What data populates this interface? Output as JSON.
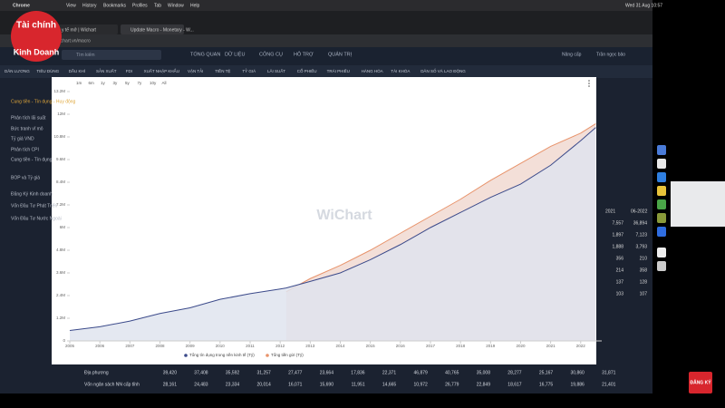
{
  "menubar": {
    "app": "Chrome",
    "items": [
      "View",
      "History",
      "Bookmarks",
      "Profiles",
      "Tab",
      "Window",
      "Help"
    ],
    "clock": "Wed 31 Aug 10:57"
  },
  "tabs": [
    "y tế mở | Wichart",
    "Update Macro - Monetary - W..."
  ],
  "address": "wichart.vn/macro",
  "logo": [
    "Tài chính",
    "Kinh Doanh"
  ],
  "search_placeholder": "Tìm kiếm",
  "nav": [
    "TỔNG QUAN",
    "DỮ LIỆU",
    "CÔNG CỤ",
    "HỖ TRỢ",
    "QUẢN TRỊ"
  ],
  "user": [
    "Nâng cấp",
    "Trần ngọc bảo"
  ],
  "subnav": [
    "DÂN LƯƠNG",
    "TIÊU DÙNG",
    "DẦU KHÍ",
    "SẢN XUẤT",
    "FDI",
    "XUẤT NHẬP KHẨU",
    "VẬN TẢI",
    "TIỀN TỆ",
    "TỶ GIÁ",
    "LÃI SUẤT",
    "CỔ PHIẾU",
    "TRÁI PHIẾU",
    "HÀNG HÓA",
    "TÀI KHÓA",
    "DÂN SỐ VÀ LAO ĐỘNG"
  ],
  "sidebar": [
    "Cung tiền - Tín dụng - Huy động",
    "Phân tích lãi suất",
    "Bức tranh vĩ mô",
    "Tỷ giá VND",
    "Phân tích CPI",
    "Cung tiền - Tín dụng",
    "BOP và Tỷ giá",
    "Đăng Ký Kinh doanh",
    "Vốn Đầu Tư Phát Triển",
    "Vốn Đầu Tư Nước Ngoài"
  ],
  "side_table": {
    "header": [
      "2021",
      "06-2022"
    ],
    "rows": [
      [
        "7,557",
        "36,894"
      ],
      [
        "1,897",
        "7,123"
      ],
      [
        "1,888",
        "3,793"
      ],
      [
        "356",
        "210"
      ],
      [
        "214",
        "358"
      ],
      [
        "137",
        "128"
      ],
      [
        "103",
        "107"
      ]
    ]
  },
  "table": {
    "rows": [
      [
        "Địa phương",
        "39,420",
        "37,408",
        "35,592",
        "31,257",
        "27,477",
        "23,664",
        "17,836",
        "22,371",
        "46,879",
        "40,765",
        "35,008",
        "28,277",
        "25,167",
        "30,860",
        "31,871"
      ],
      [
        "Vốn ngân sách NN cấp tỉnh",
        "28,161",
        "24,483",
        "23,334",
        "20,014",
        "16,071",
        "15,690",
        "11,951",
        "14,665",
        "10,972",
        "26,779",
        "22,849",
        "18,617",
        "16,775",
        "19,886",
        "21,401"
      ]
    ]
  },
  "subscribe": "ĐĂNG KÝ",
  "chart_data": {
    "type": "area",
    "ranges": [
      "1m",
      "6m",
      "1y",
      "3y",
      "5y",
      "7y",
      "10y",
      "All"
    ],
    "watermark": "WiChart",
    "x": [
      2005,
      2006,
      2007,
      2008,
      2009,
      2010,
      2011,
      2012,
      2012.2,
      2013,
      2014,
      2015,
      2016,
      2017,
      2018,
      2019,
      2020,
      2021,
      2022,
      2022.5
    ],
    "series": [
      {
        "name": "Tổng tín dụng trong nền kinh tế (Tỷ)",
        "color": "#3b4a8a",
        "fill": "#dfe4ef",
        "values": [
          550000,
          750000,
          1050000,
          1450000,
          1750000,
          2200000,
          2500000,
          2750000,
          2800000,
          3150000,
          3600000,
          4300000,
          5100000,
          6000000,
          6800000,
          7600000,
          8300000,
          9300000,
          10600000,
          11300000
        ]
      },
      {
        "name": "Tổng tiền gửi (Tỷ)",
        "color": "#e8936b",
        "fill": "#f1d9d1",
        "values": [
          null,
          null,
          null,
          null,
          null,
          null,
          null,
          null,
          2600000,
          3300000,
          4000000,
          4800000,
          5700000,
          6600000,
          7500000,
          8500000,
          9400000,
          10300000,
          11000000,
          11500000
        ]
      }
    ],
    "xlim": [
      2005,
      2022.7
    ],
    "xticks": [
      2005,
      2006,
      2007,
      2008,
      2009,
      2010,
      2011,
      2012,
      2013,
      2014,
      2015,
      2016,
      2017,
      2018,
      2019,
      2020,
      2021,
      2022
    ],
    "ylim": [
      0,
      13200000
    ],
    "yticks": [
      {
        "value": 0,
        "label": "0"
      },
      {
        "value": 1200000,
        "label": "1.2M"
      },
      {
        "value": 2400000,
        "label": "2.4M"
      },
      {
        "value": 3600000,
        "label": "3.6M"
      },
      {
        "value": 4800000,
        "label": "4.8M"
      },
      {
        "value": 6000000,
        "label": "6M"
      },
      {
        "value": 7200000,
        "label": "7.2M"
      },
      {
        "value": 8400000,
        "label": "8.4M"
      },
      {
        "value": 9600000,
        "label": "9.6M"
      },
      {
        "value": 10800000,
        "label": "10.8M"
      },
      {
        "value": 12000000,
        "label": "12M"
      },
      {
        "value": 13200000,
        "label": "13.2M"
      }
    ],
    "grid": false
  }
}
